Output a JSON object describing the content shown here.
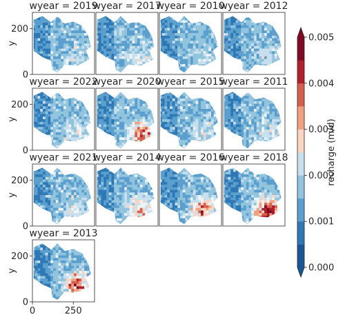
{
  "chart_data": {
    "type": "heatmap",
    "layout": "small-multiples",
    "facet_variable": "wyear",
    "panel_titles": [
      "wyear = 2019",
      "wyear = 2017",
      "wyear = 2010",
      "wyear = 2012",
      "wyear = 2022",
      "wyear = 2020",
      "wyear = 2015",
      "wyear = 2011",
      "wyear = 2021",
      "wyear = 2014",
      "wyear = 2016",
      "wyear = 2018",
      "wyear = 2013"
    ],
    "panel_max_fraction": [
      0.35,
      0.4,
      0.35,
      0.35,
      0.45,
      0.72,
      0.42,
      0.38,
      0.4,
      0.58,
      0.72,
      0.9,
      0.78
    ],
    "xlabel": "x",
    "ylabel": "y",
    "x_ticks": [
      "0",
      "250"
    ],
    "y_ticks": [
      "200",
      "0"
    ],
    "x_tick_values": [
      0,
      250
    ],
    "y_tick_values": [
      200,
      0
    ],
    "xlim": [
      0,
      380
    ],
    "ylim": [
      0,
      270
    ],
    "colorbar": {
      "label": "recharge (m/d)",
      "ticks": [
        "0.005",
        "0.004",
        "0.003",
        "0.002",
        "0.001",
        "0.000"
      ],
      "tick_values": [
        0.005,
        0.004,
        0.003,
        0.002,
        0.001,
        0.0
      ],
      "min": 0.0,
      "max": 0.005,
      "colormap": "RdBu_r",
      "extend": "both",
      "levels": 10
    },
    "colors": [
      "#195696",
      "#2e78b5",
      "#5a9fcd",
      "#92c4de",
      "#c8e0ee",
      "#eef3f6",
      "#fad5c1",
      "#f0a27f",
      "#d6604d",
      "#b01f2b",
      "#7f0a21"
    ]
  }
}
